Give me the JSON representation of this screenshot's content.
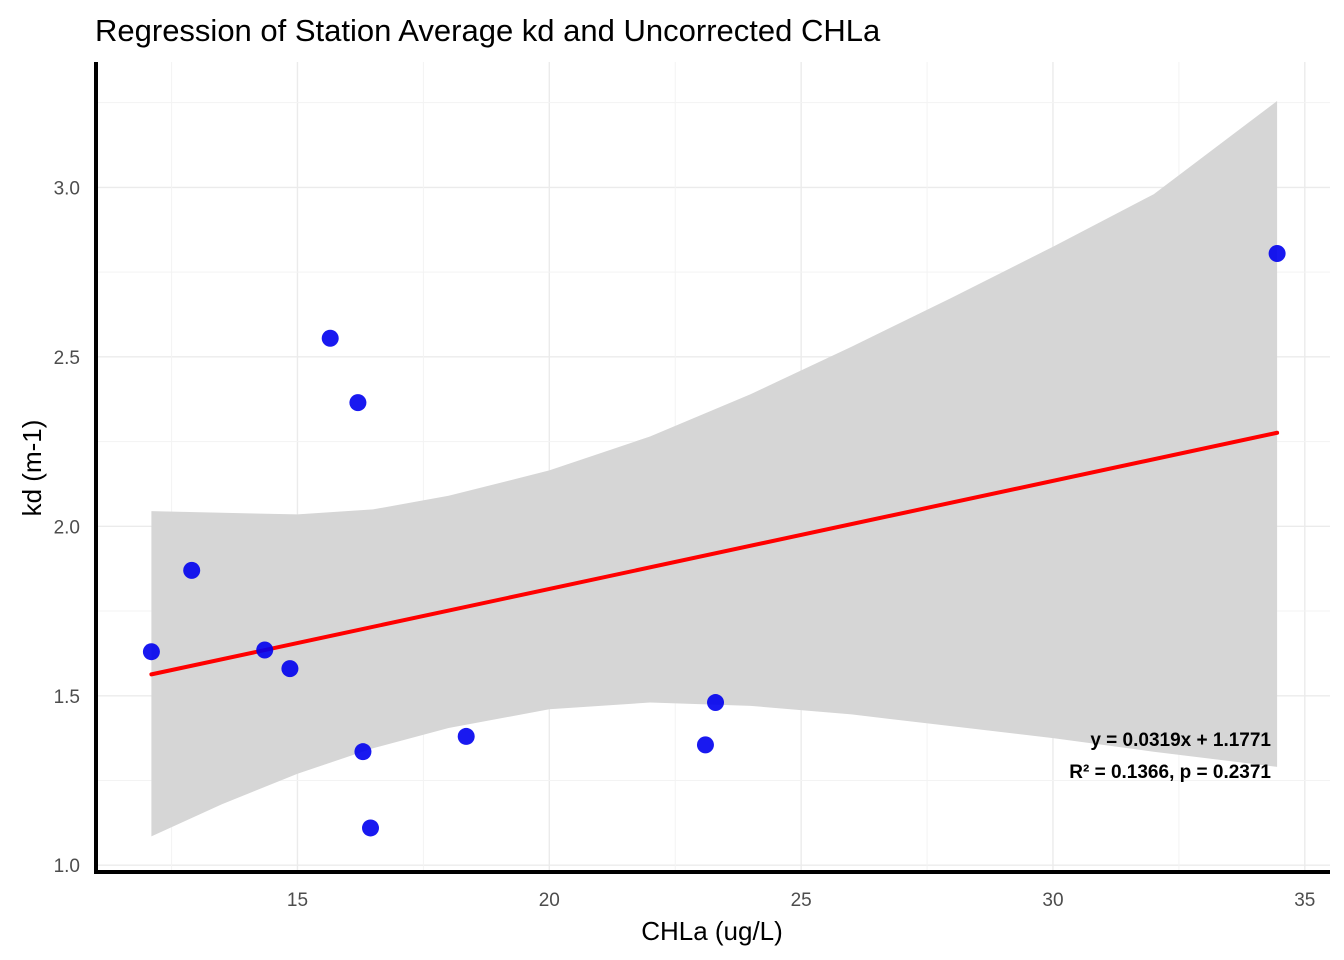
{
  "chart_data": {
    "type": "scatter",
    "title": "Regression of Station Average kd and Uncorrected CHLa",
    "xlabel": "CHLa (ug/L)",
    "ylabel": "kd (m-1)",
    "xlim": [
      11.0,
      35.5
    ],
    "ylim": [
      0.98,
      3.37
    ],
    "x_ticks": [
      15,
      20,
      25,
      30,
      35
    ],
    "y_ticks": [
      1.0,
      1.5,
      2.0,
      2.5,
      3.0
    ],
    "x_tick_labels": [
      "15",
      "20",
      "25",
      "30",
      "35"
    ],
    "y_tick_labels": [
      "1.0",
      "1.5",
      "2.0",
      "2.5",
      "3.0"
    ],
    "grid": true,
    "points": [
      {
        "x": 12.1,
        "y": 1.63
      },
      {
        "x": 12.9,
        "y": 1.87
      },
      {
        "x": 14.35,
        "y": 1.635
      },
      {
        "x": 14.85,
        "y": 1.58
      },
      {
        "x": 15.65,
        "y": 2.555
      },
      {
        "x": 16.2,
        "y": 2.365
      },
      {
        "x": 16.3,
        "y": 1.335
      },
      {
        "x": 16.45,
        "y": 1.11
      },
      {
        "x": 18.35,
        "y": 1.38
      },
      {
        "x": 23.1,
        "y": 1.355
      },
      {
        "x": 23.3,
        "y": 1.48
      },
      {
        "x": 34.45,
        "y": 2.805
      }
    ],
    "regression": {
      "slope": 0.0319,
      "intercept": 1.1771,
      "x_range": [
        12.1,
        34.45
      ],
      "confidence_band": [
        {
          "x": 12.1,
          "lower": 1.085,
          "upper": 2.045
        },
        {
          "x": 13.5,
          "lower": 1.18,
          "upper": 2.04
        },
        {
          "x": 15.0,
          "lower": 1.27,
          "upper": 2.035
        },
        {
          "x": 16.5,
          "lower": 1.345,
          "upper": 2.05
        },
        {
          "x": 18.0,
          "lower": 1.405,
          "upper": 2.09
        },
        {
          "x": 20.0,
          "lower": 1.46,
          "upper": 2.165
        },
        {
          "x": 22.0,
          "lower": 1.48,
          "upper": 2.265
        },
        {
          "x": 24.0,
          "lower": 1.47,
          "upper": 2.39
        },
        {
          "x": 26.0,
          "lower": 1.445,
          "upper": 2.53
        },
        {
          "x": 28.0,
          "lower": 1.41,
          "upper": 2.675
        },
        {
          "x": 30.0,
          "lower": 1.375,
          "upper": 2.825
        },
        {
          "x": 32.0,
          "lower": 1.335,
          "upper": 2.98
        },
        {
          "x": 34.45,
          "lower": 1.29,
          "upper": 3.255
        }
      ]
    },
    "annotations": [
      "y = 0.0319x + 1.1771",
      "R² = 0.1366, p = 0.2371"
    ],
    "colors": {
      "points": "#0000ee",
      "line": "#ff0000",
      "band": "#d6d6d6",
      "axis": "#000000"
    }
  }
}
